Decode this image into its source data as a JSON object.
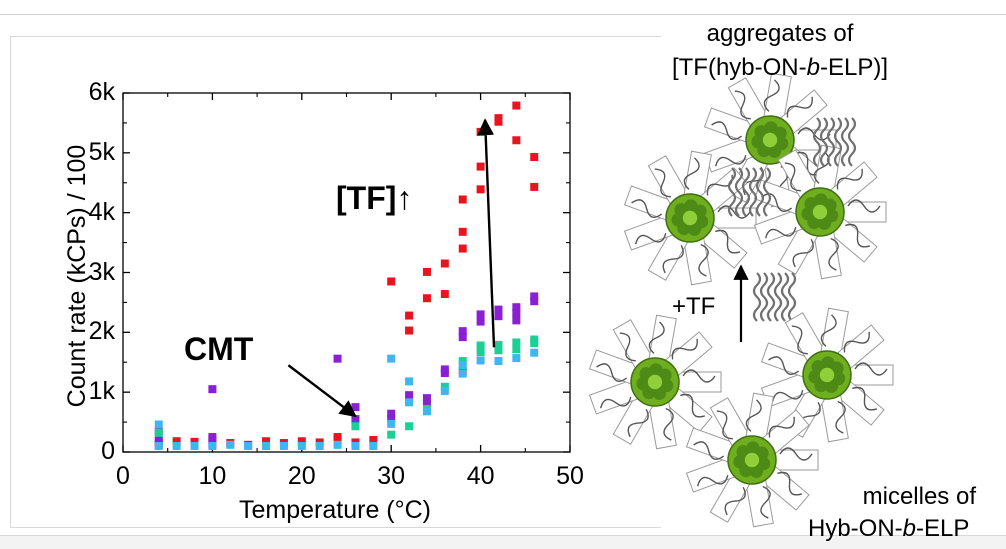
{
  "chart_data": {
    "type": "scatter",
    "xlabel": "Temperature (°C)",
    "ylabel": "Count rate (kCPs) / 100",
    "xlim": [
      0,
      50
    ],
    "ylim": [
      0,
      6000
    ],
    "xticks": [
      0,
      10,
      20,
      30,
      40,
      50
    ],
    "xtick_labels": [
      "0",
      "10",
      "20",
      "30",
      "40",
      "50"
    ],
    "yticks": [
      0,
      1000,
      2000,
      3000,
      4000,
      5000,
      6000
    ],
    "ytick_labels": [
      "0",
      "1k",
      "2k",
      "3k",
      "4k",
      "5k",
      "6k"
    ],
    "grid": false,
    "legend": "none",
    "series": [
      {
        "color": "#e8141f",
        "points": [
          [
            4,
            150
          ],
          [
            4,
            120
          ],
          [
            6,
            180
          ],
          [
            8,
            170
          ],
          [
            10,
            140
          ],
          [
            10,
            200
          ],
          [
            12,
            150
          ],
          [
            14,
            120
          ],
          [
            16,
            180
          ],
          [
            18,
            150
          ],
          [
            20,
            180
          ],
          [
            22,
            160
          ],
          [
            24,
            200
          ],
          [
            24,
            250
          ],
          [
            26,
            160
          ],
          [
            28,
            200
          ],
          [
            30,
            2850
          ],
          [
            32,
            2280
          ],
          [
            32,
            2030
          ],
          [
            34,
            3010
          ],
          [
            34,
            2570
          ],
          [
            36,
            3150
          ],
          [
            36,
            2640
          ],
          [
            38,
            3680
          ],
          [
            38,
            3400
          ],
          [
            38,
            4220
          ],
          [
            38,
            1350
          ],
          [
            40,
            4390
          ],
          [
            40,
            4770
          ],
          [
            40,
            5350
          ],
          [
            42,
            5520
          ],
          [
            42,
            5580
          ],
          [
            44,
            5790
          ],
          [
            44,
            5210
          ],
          [
            46,
            4930
          ],
          [
            46,
            4430
          ]
        ]
      },
      {
        "color": "#8a1fd3",
        "points": [
          [
            4,
            350
          ],
          [
            4,
            200
          ],
          [
            10,
            1050
          ],
          [
            10,
            250
          ],
          [
            24,
            1560
          ],
          [
            26,
            750
          ],
          [
            26,
            550
          ],
          [
            30,
            640
          ],
          [
            30,
            560
          ],
          [
            32,
            950
          ],
          [
            32,
            860
          ],
          [
            34,
            900
          ],
          [
            34,
            820
          ],
          [
            36,
            1320
          ],
          [
            36,
            1380
          ],
          [
            38,
            2020
          ],
          [
            38,
            1920
          ],
          [
            40,
            2300
          ],
          [
            40,
            2180
          ],
          [
            42,
            2380
          ],
          [
            42,
            2270
          ],
          [
            44,
            2420
          ],
          [
            44,
            2320
          ],
          [
            44,
            2200
          ],
          [
            46,
            2520
          ],
          [
            46,
            2600
          ]
        ]
      },
      {
        "color": "#1ccf95",
        "points": [
          [
            4,
            320
          ],
          [
            26,
            430
          ],
          [
            30,
            290
          ],
          [
            32,
            430
          ],
          [
            34,
            720
          ],
          [
            36,
            1090
          ],
          [
            38,
            1520
          ],
          [
            40,
            1780
          ],
          [
            40,
            1670
          ],
          [
            42,
            1790
          ],
          [
            42,
            1700
          ],
          [
            44,
            1830
          ],
          [
            44,
            1720
          ],
          [
            46,
            1880
          ],
          [
            46,
            1820
          ]
        ]
      },
      {
        "color": "#3fb6f0",
        "points": [
          [
            4,
            460
          ],
          [
            4,
            100
          ],
          [
            6,
            100
          ],
          [
            8,
            100
          ],
          [
            10,
            100
          ],
          [
            12,
            120
          ],
          [
            14,
            100
          ],
          [
            16,
            100
          ],
          [
            18,
            100
          ],
          [
            20,
            100
          ],
          [
            22,
            100
          ],
          [
            24,
            120
          ],
          [
            26,
            100
          ],
          [
            28,
            100
          ],
          [
            30,
            1560
          ],
          [
            30,
            470
          ],
          [
            32,
            1180
          ],
          [
            32,
            830
          ],
          [
            34,
            680
          ],
          [
            36,
            1020
          ],
          [
            38,
            1310
          ],
          [
            38,
            1450
          ],
          [
            40,
            1530
          ],
          [
            42,
            1520
          ],
          [
            44,
            1570
          ],
          [
            46,
            1660
          ]
        ]
      }
    ],
    "annotations": [
      {
        "text": "CMT",
        "bold": true,
        "arrow_from": [
          18.5,
          1450
        ],
        "arrow_to": [
          26,
          600
        ]
      },
      {
        "text": "[TF]↑",
        "bold": true,
        "arrow_from": [
          41.5,
          1750
        ],
        "arrow_to": [
          40.5,
          5550
        ]
      }
    ]
  },
  "illustration": {
    "top_label_line1": "aggregates of",
    "top_label_line2": "[TF(hyb-ON-b-ELP)]",
    "middle_label": "+TF",
    "bottom_label_line1": "micelles of",
    "bottom_label_line2": "Hyb-ON-b-ELP",
    "micelle_color": "#6fae1f",
    "protein_color": "#707070"
  }
}
